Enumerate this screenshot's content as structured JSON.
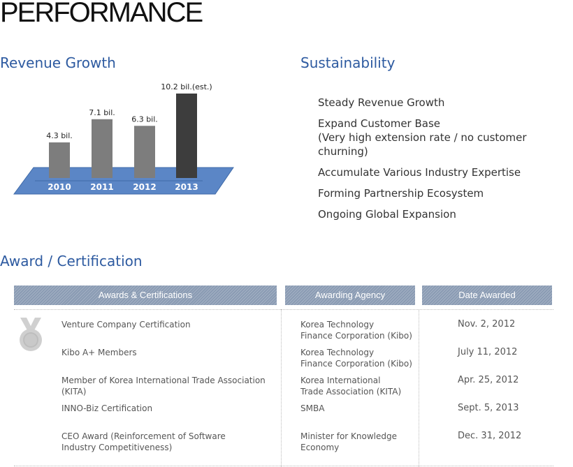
{
  "page": {
    "title": "PERFORMANCE"
  },
  "revenue": {
    "title": "Revenue Growth",
    "chart_data": {
      "type": "bar",
      "title": "",
      "categories": [
        "2010",
        "2011",
        "2012",
        "2013"
      ],
      "values": [
        4.3,
        7.1,
        6.3,
        10.2
      ],
      "data_labels": [
        "4.3 bil.",
        "7.1 bil.",
        "6.3 bil.",
        "10.2 bil.(est.)"
      ],
      "xlabel": "",
      "ylabel": "",
      "ylim": [
        0,
        10.2
      ],
      "grid": false,
      "colors": {
        "bar": "#7d7d7d",
        "bar_highlight": "#3d3d3d",
        "base": "#5b86c6",
        "base_edge": "#3f6aa8",
        "label": "#ffffff"
      }
    }
  },
  "sustainability": {
    "title": "Sustainability",
    "items": [
      {
        "label": "Steady Revenue Growth",
        "sub": ""
      },
      {
        "label": "Expand Customer Base",
        "sub": "(Very high extension rate / no customer churning)"
      },
      {
        "label": "Accumulate Various Industry Expertise",
        "sub": ""
      },
      {
        "label": "Forming Partnership Ecosystem",
        "sub": ""
      },
      {
        "label": "Ongoing Global Expansion",
        "sub": ""
      }
    ]
  },
  "awards": {
    "title": "Award / Certification",
    "icon": "medal-icon",
    "headers": {
      "award": "Awards & Certifications",
      "agency": "Awarding Agency",
      "date": "Date Awarded"
    },
    "rows": [
      {
        "name_1": "Venture Company Certification",
        "name_2": "",
        "agency_1": "Korea Technology",
        "agency_2": "Finance Corporation (Kibo)",
        "date": "Nov. 2, 2012"
      },
      {
        "name_1": "Kibo A+ Members",
        "name_2": "",
        "agency_1": "Korea Technology",
        "agency_2": "Finance Corporation (Kibo)",
        "date": "July 11, 2012"
      },
      {
        "name_1": "Member of Korea International Trade Association (KITA)",
        "name_2": "",
        "agency_1": "Korea International",
        "agency_2": "Trade Association (KITA)",
        "date": "Apr. 25, 2012"
      },
      {
        "name_1": "INNO-Biz Certification",
        "name_2": "",
        "agency_1": "SMBA",
        "agency_2": "",
        "date": "Sept. 5, 2013"
      },
      {
        "name_1": "CEO Award (Reinforcement of Software",
        "name_2": "Industry Competitiveness)",
        "agency_1": "Minister for Knowledge",
        "agency_2": "Economy",
        "date": "Dec. 31, 2012"
      }
    ]
  }
}
